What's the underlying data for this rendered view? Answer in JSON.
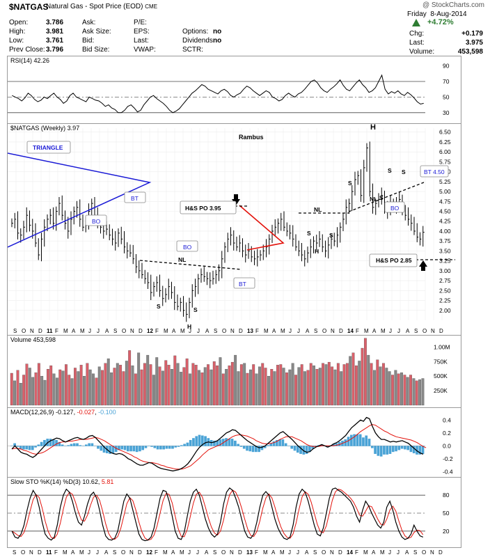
{
  "header": {
    "symbol": "$NATGAS",
    "name": "Natural Gas - Spot Price (EOD)",
    "exchange": "CME",
    "watermark": "@ StockCharts.com",
    "date_day": "Friday",
    "date": "8-Aug-2014",
    "change_pct": "+4.72%",
    "quotes_left": [
      {
        "label": "Open:",
        "value": "3.786"
      },
      {
        "label": "High:",
        "value": "3.981"
      },
      {
        "label": "Low:",
        "value": "3.761"
      },
      {
        "label": "Prev Close:",
        "value": "3.796"
      }
    ],
    "quotes_mid": [
      "Ask:",
      "Ask Size:",
      "Bid:",
      "Bid Size:"
    ],
    "quotes_mid2": [
      "P/E:",
      "EPS:",
      "Last:",
      "VWAP:"
    ],
    "quotes_mid3": [
      {
        "label": "",
        "value": ""
      },
      {
        "label": "Options:",
        "value": "no"
      },
      {
        "label": "Dividends:",
        "value": "no"
      },
      {
        "label": "SCTR:",
        "value": ""
      }
    ],
    "quotes_right": [
      {
        "label": "Chg:",
        "value": "+0.179"
      },
      {
        "label": "Last:",
        "value": "3.975"
      },
      {
        "label": "Volume:",
        "value": "453,598"
      }
    ]
  },
  "colors": {
    "up_bar": "#d9606a",
    "down_bar": "#888888",
    "macd_hist": "#4aa3d6",
    "signal": "#e3120b",
    "triangle": "#1a1ad6",
    "red_tri": "#e3120b",
    "up_arrow": "#2e7d32"
  },
  "chart_data": [
    {
      "type": "line",
      "panel": "rsi",
      "label": "RSI(14) 42.26",
      "ylim": [
        20,
        95
      ],
      "yticks": [
        90,
        70,
        50,
        30
      ],
      "reference_lines": [
        70,
        30
      ],
      "center_line": 50,
      "values": [
        52,
        50,
        48,
        45,
        49,
        55,
        52,
        47,
        44,
        46,
        50,
        48,
        52,
        55,
        50,
        47,
        42,
        45,
        52,
        55,
        50,
        48,
        46,
        44,
        50,
        48,
        46,
        45,
        42,
        38,
        40,
        36,
        34,
        30,
        30,
        33,
        38,
        40,
        36,
        31,
        33,
        40,
        45,
        50,
        52,
        48,
        45,
        42,
        38,
        33,
        30,
        32,
        35,
        40,
        45,
        50,
        55,
        58,
        62,
        66,
        64,
        60,
        58,
        56,
        54,
        58,
        60,
        57,
        52,
        50,
        53,
        55,
        60,
        64,
        62,
        58,
        55,
        52,
        55,
        58,
        56,
        50,
        48,
        45,
        47,
        52,
        55,
        52,
        50,
        54,
        56,
        60,
        65,
        70,
        72,
        68,
        62,
        58,
        56,
        60,
        63,
        67,
        72,
        65,
        60,
        58,
        63,
        68,
        72,
        66,
        62,
        56,
        58,
        62,
        70,
        78,
        60,
        54,
        57,
        55,
        58,
        54,
        52,
        56,
        53,
        49,
        44,
        41,
        42
      ]
    },
    {
      "type": "bar",
      "panel": "price",
      "label": "$NATGAS (Weekly) 3.97",
      "title": "Rambus",
      "ylim": [
        1.75,
        6.6
      ],
      "yticks": [
        6.5,
        6.25,
        6.0,
        5.75,
        5.5,
        5.25,
        5.0,
        4.75,
        4.5,
        4.25,
        4.0,
        3.75,
        3.5,
        3.25,
        3.0,
        2.75,
        2.5,
        2.25,
        2.0
      ],
      "ytick_labels": [
        "6.50",
        "6.25",
        "6.00",
        "5.75",
        "5.50",
        "5.25",
        "5.00",
        "4.75",
        "4.50",
        "4.25",
        "4.00",
        "3.75",
        "3.50",
        "3.25",
        "3.00",
        "2.75",
        "2.50",
        "2.25",
        "2.00"
      ],
      "close": [
        4.2,
        4.3,
        3.95,
        3.9,
        4.1,
        4.4,
        4.15,
        4.0,
        3.7,
        3.4,
        3.8,
        4.1,
        4.3,
        4.4,
        4.2,
        4.5,
        4.7,
        4.4,
        4.2,
        4.0,
        4.3,
        4.5,
        4.6,
        4.3,
        4.1,
        4.2,
        4.5,
        4.7,
        4.4,
        4.2,
        4.1,
        4.0,
        4.05,
        3.9,
        3.8,
        3.7,
        3.95,
        3.8,
        3.6,
        3.5,
        3.45,
        3.3,
        3.1,
        3.0,
        2.9,
        2.8,
        2.7,
        2.45,
        2.6,
        2.7,
        2.5,
        2.3,
        2.4,
        2.6,
        2.45,
        2.2,
        2.1,
        2.2,
        2.0,
        1.9,
        2.2,
        2.5,
        2.6,
        2.8,
        2.9,
        2.85,
        2.8,
        2.75,
        2.8,
        2.9,
        3.0,
        3.3,
        3.6,
        3.8,
        3.9,
        3.7,
        3.6,
        3.7,
        3.5,
        3.4,
        3.5,
        3.35,
        3.3,
        3.35,
        3.4,
        3.5,
        3.6,
        3.8,
        4.0,
        4.1,
        4.2,
        4.3,
        4.1,
        4.0,
        3.95,
        3.8,
        3.6,
        3.5,
        3.4,
        3.3,
        3.45,
        3.6,
        3.75,
        3.7,
        3.8,
        3.6,
        3.5,
        3.65,
        3.8,
        3.75,
        3.9,
        4.1,
        4.3,
        4.6,
        4.7,
        5.0,
        5.3,
        5.4,
        4.9,
        5.6,
        6.1,
        5.0,
        4.6,
        4.7,
        4.8,
        4.9,
        4.6,
        4.5,
        4.7,
        4.6,
        4.7,
        4.8,
        4.5,
        4.4,
        4.3,
        4.2,
        4.0,
        3.85,
        3.8,
        3.97
      ],
      "x_ticks": [
        "S",
        "O",
        "N",
        "D",
        "11",
        "F",
        "M",
        "A",
        "M",
        "J",
        "J",
        "A",
        "S",
        "O",
        "N",
        "D",
        "12",
        "F",
        "M",
        "A",
        "M",
        "J",
        "J",
        "A",
        "S",
        "O",
        "N",
        "D",
        "13",
        "F",
        "M",
        "A",
        "M",
        "J",
        "J",
        "A",
        "S",
        "O",
        "N",
        "D",
        "14",
        "F",
        "M",
        "A",
        "M",
        "J",
        "J",
        "A",
        "S",
        "O",
        "N",
        "D"
      ],
      "annotations": [
        {
          "text": "TRIANGLE"
        },
        {
          "text": "BT"
        },
        {
          "text": "BO"
        },
        {
          "text": "H&S PO 3.95"
        },
        {
          "text": "BO"
        },
        {
          "text": "NL"
        },
        {
          "text": "BT"
        },
        {
          "text": "S"
        },
        {
          "text": "S"
        },
        {
          "text": "H"
        },
        {
          "text": "NL"
        },
        {
          "text": "S"
        },
        {
          "text": "S"
        },
        {
          "text": "H"
        },
        {
          "text": "H"
        },
        {
          "text": "S"
        },
        {
          "text": "S"
        },
        {
          "text": "S"
        },
        {
          "text": "S"
        },
        {
          "text": "NL"
        },
        {
          "text": "BO"
        },
        {
          "text": "BT 4.50"
        },
        {
          "text": "H&S PO 2.85"
        }
      ]
    },
    {
      "type": "bar",
      "panel": "volume",
      "label": "Volume 453,598",
      "ylim": [
        0,
        1100000
      ],
      "yticks": [
        "1.00M",
        "750K",
        "500K",
        "250K"
      ],
      "ytick_values": [
        1000000,
        750000,
        500000,
        250000
      ],
      "values": [
        550,
        420,
        600,
        380,
        520,
        710,
        640,
        480,
        560,
        720,
        500,
        430,
        620,
        680,
        540,
        470,
        610,
        590,
        700,
        520,
        460,
        640,
        580,
        690,
        500,
        720,
        610,
        540,
        470,
        660,
        600,
        720,
        800,
        560,
        640,
        720,
        690,
        580,
        760,
        940,
        680,
        540,
        900,
        610,
        720,
        860,
        700,
        520,
        820,
        660,
        590,
        770,
        690,
        620,
        850,
        720,
        570,
        650,
        800,
        540,
        720,
        690,
        600,
        560,
        650,
        700,
        610,
        750,
        680,
        820,
        540,
        620,
        680,
        740,
        860,
        580,
        700,
        720,
        550,
        610,
        700,
        540,
        660,
        720,
        640,
        500,
        620,
        580,
        690,
        700,
        640,
        560,
        610,
        720,
        520,
        650,
        700,
        580,
        600,
        720,
        680,
        620,
        640,
        720,
        700,
        740,
        660,
        610,
        720,
        580,
        700,
        720,
        840,
        900,
        680,
        760,
        980,
        1150,
        860,
        720,
        600,
        780,
        660,
        720,
        640,
        580,
        520,
        600,
        540,
        560,
        520,
        480,
        520,
        460,
        420,
        440,
        460
      ],
      "up": [
        1,
        0,
        1,
        0,
        1,
        1,
        0,
        0,
        1,
        1,
        0,
        0,
        1,
        1,
        0,
        0,
        1,
        0,
        1,
        1,
        0,
        1,
        0,
        1,
        0,
        1,
        0,
        0,
        1,
        0,
        1,
        1,
        0,
        0,
        1,
        0,
        1,
        1,
        0,
        1,
        0,
        1,
        0,
        1,
        1,
        0,
        1,
        0,
        0,
        1,
        0,
        1,
        1,
        0,
        1,
        0,
        0,
        1,
        1,
        0,
        1,
        1,
        0,
        1,
        0,
        1,
        0,
        1,
        1,
        0,
        1,
        0,
        1,
        1,
        0,
        0,
        1,
        0,
        1,
        0,
        1,
        0,
        0,
        1,
        1,
        0,
        1,
        0,
        1,
        1,
        0,
        1,
        0,
        0,
        1,
        0,
        1,
        0,
        1,
        1,
        0,
        1,
        0,
        1,
        0,
        1,
        1,
        0,
        1,
        0,
        1,
        1,
        0,
        1,
        1,
        0,
        1,
        1,
        0,
        1,
        0,
        1,
        0,
        1,
        0,
        0,
        1,
        0,
        1,
        0,
        1,
        0,
        1,
        0,
        1,
        0,
        0
      ]
    },
    {
      "type": "line",
      "panel": "macd",
      "label_prefix": "MACD(12,26,9)",
      "label_macd": "-0.127",
      "label_signal": "-0.027",
      "label_hist": "-0.100",
      "ylim": [
        -0.45,
        0.5
      ],
      "yticks": [
        0.4,
        0.2,
        0.0,
        -0.2,
        -0.4
      ],
      "ytick_labels": [
        "0.4",
        "0.2",
        "0.0",
        "-0.2",
        "-0.4"
      ],
      "macd": [
        -0.05,
        0.0,
        -0.05,
        -0.1,
        -0.12,
        -0.13,
        -0.16,
        -0.18,
        -0.15,
        -0.1,
        -0.05,
        0.0,
        0.05,
        0.08,
        0.1,
        0.12,
        0.11,
        0.08,
        0.06,
        0.08,
        0.1,
        0.12,
        0.13,
        0.11,
        0.1,
        0.12,
        0.15,
        0.16,
        0.13,
        0.08,
        0.03,
        -0.02,
        -0.06,
        -0.1,
        -0.12,
        -0.13,
        -0.12,
        -0.13,
        -0.16,
        -0.2,
        -0.22,
        -0.25,
        -0.28,
        -0.3,
        -0.3,
        -0.28,
        -0.26,
        -0.27,
        -0.3,
        -0.33,
        -0.35,
        -0.36,
        -0.37,
        -0.38,
        -0.39,
        -0.38,
        -0.37,
        -0.35,
        -0.32,
        -0.28,
        -0.22,
        -0.15,
        -0.08,
        -0.02,
        0.02,
        0.05,
        0.06,
        0.05,
        0.06,
        0.08,
        0.12,
        0.16,
        0.2,
        0.22,
        0.25,
        0.24,
        0.2,
        0.16,
        0.12,
        0.08,
        0.05,
        0.02,
        -0.01,
        -0.03,
        -0.02,
        0.0,
        0.04,
        0.08,
        0.12,
        0.16,
        0.2,
        0.22,
        0.18,
        0.14,
        0.1,
        0.05,
        0.0,
        -0.04,
        -0.08,
        -0.1,
        -0.09,
        -0.05,
        -0.02,
        0.0,
        0.02,
        0.0,
        -0.02,
        0.0,
        0.03,
        0.05,
        0.08,
        0.12,
        0.16,
        0.22,
        0.28,
        0.32,
        0.36,
        0.4,
        0.38,
        0.44,
        0.42,
        0.3,
        0.2,
        0.14,
        0.1,
        0.1,
        0.08,
        0.06,
        0.07,
        0.06,
        0.07,
        0.08,
        0.06,
        0.04,
        0.0,
        -0.04,
        -0.08,
        -0.11,
        -0.13
      ],
      "signal": [
        -0.05,
        -0.04,
        -0.04,
        -0.05,
        -0.07,
        -0.08,
        -0.1,
        -0.12,
        -0.13,
        -0.12,
        -0.11,
        -0.09,
        -0.06,
        -0.03,
        0.0,
        0.03,
        0.05,
        0.06,
        0.06,
        0.07,
        0.07,
        0.08,
        0.09,
        0.1,
        0.1,
        0.1,
        0.11,
        0.12,
        0.13,
        0.12,
        0.1,
        0.08,
        0.05,
        0.02,
        -0.01,
        -0.04,
        -0.06,
        -0.08,
        -0.1,
        -0.12,
        -0.14,
        -0.17,
        -0.19,
        -0.22,
        -0.24,
        -0.25,
        -0.26,
        -0.26,
        -0.27,
        -0.28,
        -0.3,
        -0.31,
        -0.33,
        -0.34,
        -0.35,
        -0.36,
        -0.36,
        -0.36,
        -0.35,
        -0.33,
        -0.31,
        -0.27,
        -0.23,
        -0.19,
        -0.14,
        -0.1,
        -0.06,
        -0.04,
        -0.02,
        0.0,
        0.02,
        0.05,
        0.08,
        0.11,
        0.14,
        0.16,
        0.17,
        0.17,
        0.16,
        0.15,
        0.13,
        0.11,
        0.08,
        0.06,
        0.04,
        0.03,
        0.03,
        0.04,
        0.05,
        0.07,
        0.1,
        0.12,
        0.14,
        0.14,
        0.14,
        0.12,
        0.1,
        0.08,
        0.05,
        0.02,
        0.0,
        -0.01,
        -0.01,
        -0.01,
        0.0,
        0.0,
        0.0,
        0.0,
        0.0,
        0.01,
        0.02,
        0.04,
        0.06,
        0.08,
        0.11,
        0.14,
        0.18,
        0.22,
        0.25,
        0.28,
        0.31,
        0.33,
        0.32,
        0.29,
        0.26,
        0.23,
        0.21,
        0.18,
        0.16,
        0.14,
        0.13,
        0.12,
        0.11,
        0.1,
        0.09,
        0.07,
        0.05,
        0.02,
        -0.01,
        -0.03
      ]
    },
    {
      "type": "line",
      "panel": "sto",
      "label_prefix": "Slow STO %K(14) %D(3)",
      "label_k": "10.62",
      "label_d": "5.81",
      "ylim": [
        0,
        100
      ],
      "yticks": [
        80,
        50,
        20
      ],
      "reference_lines": [
        80,
        20
      ],
      "center_line": 50,
      "k": [
        20,
        10,
        8,
        15,
        30,
        55,
        75,
        88,
        80,
        60,
        35,
        15,
        8,
        5,
        10,
        30,
        60,
        80,
        90,
        85,
        70,
        50,
        35,
        30,
        45,
        65,
        80,
        85,
        75,
        55,
        30,
        12,
        6,
        5,
        8,
        20,
        45,
        70,
        82,
        75,
        55,
        35,
        15,
        6,
        4,
        5,
        10,
        25,
        50,
        75,
        88,
        86,
        70,
        45,
        20,
        8,
        6,
        18,
        45,
        70,
        85,
        90,
        80,
        60,
        40,
        25,
        15,
        10,
        15,
        35,
        65,
        85,
        92,
        88,
        75,
        60,
        40,
        20,
        10,
        8,
        15,
        35,
        60,
        80,
        86,
        80,
        60,
        40,
        25,
        15,
        8,
        6,
        10,
        30,
        60,
        82,
        90,
        85,
        70,
        50,
        30,
        15,
        12,
        25,
        50,
        75,
        90,
        92,
        88,
        85,
        80,
        75,
        70,
        60,
        45,
        35,
        55,
        70,
        62,
        50,
        40,
        30,
        25,
        35,
        60,
        70,
        55,
        35,
        20,
        10,
        6,
        8,
        15,
        30,
        20,
        12,
        10
      ]
    }
  ]
}
